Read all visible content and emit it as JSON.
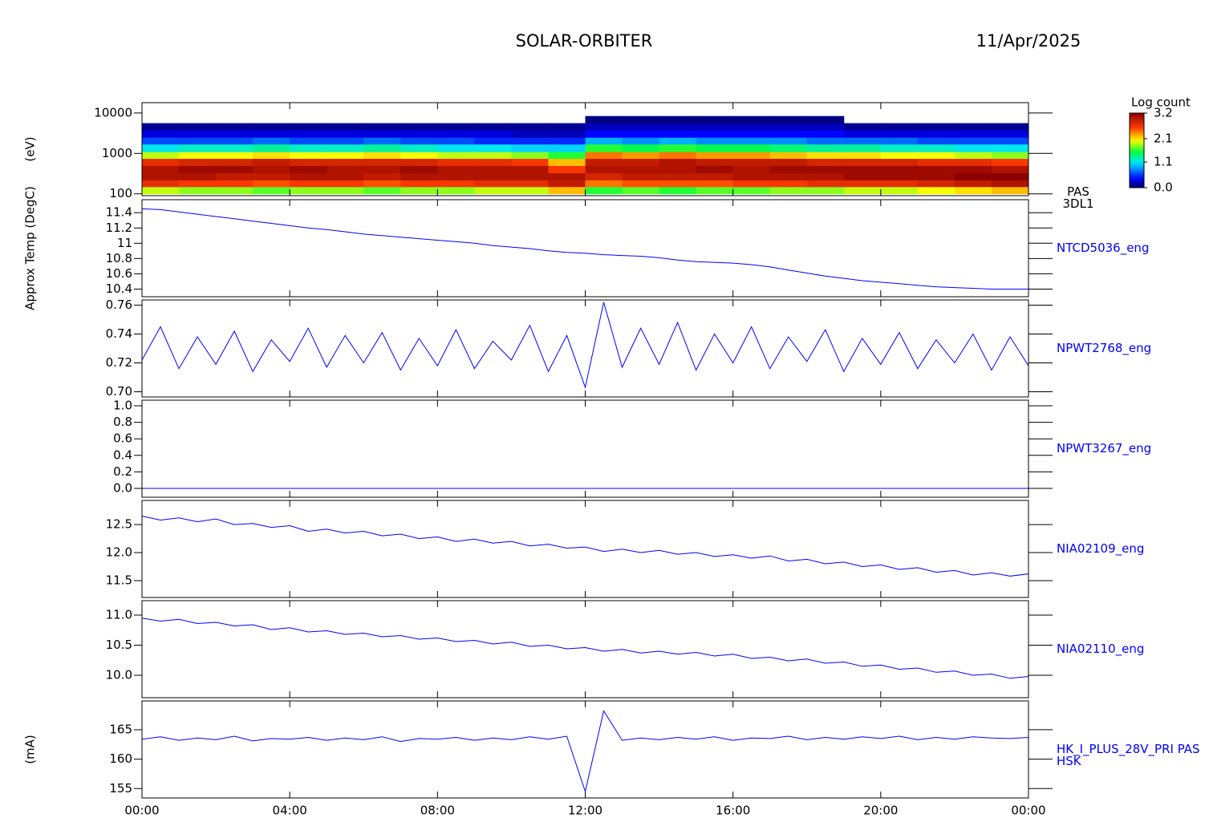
{
  "header": {
    "title": "SOLAR-ORBITER",
    "date": "11/Apr/2025"
  },
  "chart_data": [
    {
      "type": "heatmap",
      "name": "PAS 3DL1",
      "ylabel": "(eV)",
      "ylog": true,
      "colormap": "rainbow",
      "x_bins": [
        0,
        1,
        2,
        3,
        4,
        5,
        6,
        7,
        8,
        9,
        10,
        11,
        12,
        13,
        14,
        15,
        16,
        17,
        18,
        19,
        20,
        21,
        22,
        23,
        24
      ],
      "y_bins": [
        100,
        150,
        220,
        330,
        500,
        750,
        1100,
        1700,
        2500,
        3800,
        5600,
        8400,
        12500
      ],
      "z": [
        [
          1.9,
          2.7,
          3.0,
          3.0,
          2.7,
          1.9,
          1.1,
          0.6,
          0.3,
          0.1,
          null,
          null
        ],
        [
          1.8,
          2.6,
          3.0,
          3.1,
          2.8,
          2.0,
          1.2,
          0.6,
          0.3,
          0.1,
          null,
          null
        ],
        [
          1.8,
          2.6,
          2.9,
          3.1,
          2.8,
          2.0,
          1.2,
          0.6,
          0.3,
          0.1,
          null,
          null
        ],
        [
          1.7,
          2.5,
          2.9,
          3.0,
          2.9,
          2.1,
          1.3,
          0.7,
          0.3,
          0.1,
          null,
          null
        ],
        [
          1.8,
          2.6,
          3.0,
          3.1,
          2.8,
          2.0,
          1.2,
          0.6,
          0.3,
          0.1,
          null,
          null
        ],
        [
          1.8,
          2.6,
          3.0,
          3.0,
          2.8,
          2.0,
          1.2,
          0.6,
          0.3,
          0.1,
          null,
          null
        ],
        [
          1.7,
          2.5,
          2.9,
          3.0,
          2.8,
          2.1,
          1.3,
          0.7,
          0.3,
          0.1,
          null,
          null
        ],
        [
          1.8,
          2.6,
          3.0,
          3.1,
          2.8,
          2.0,
          1.2,
          0.6,
          0.3,
          0.1,
          null,
          null
        ],
        [
          1.8,
          2.6,
          3.0,
          3.0,
          2.7,
          1.9,
          1.1,
          0.6,
          0.3,
          0.1,
          null,
          null
        ],
        [
          1.9,
          2.7,
          3.0,
          3.0,
          2.7,
          1.9,
          1.1,
          0.5,
          0.3,
          0.1,
          null,
          null
        ],
        [
          1.9,
          2.7,
          3.0,
          3.0,
          2.6,
          1.8,
          1.0,
          0.5,
          0.2,
          0.1,
          null,
          null
        ],
        [
          2.2,
          2.9,
          3.0,
          2.6,
          2.2,
          1.6,
          1.0,
          0.5,
          0.2,
          0.1,
          null,
          null
        ],
        [
          1.6,
          2.4,
          2.8,
          3.0,
          2.9,
          2.4,
          1.6,
          0.9,
          0.4,
          0.2,
          0.05,
          null
        ],
        [
          1.7,
          2.5,
          2.9,
          3.0,
          2.9,
          2.3,
          1.5,
          0.8,
          0.4,
          0.2,
          0.05,
          null
        ],
        [
          1.6,
          2.5,
          2.9,
          3.0,
          3.0,
          2.4,
          1.6,
          0.9,
          0.4,
          0.2,
          0.05,
          null
        ],
        [
          1.7,
          2.5,
          2.9,
          3.1,
          2.9,
          2.3,
          1.5,
          0.8,
          0.4,
          0.2,
          0.05,
          null
        ],
        [
          1.7,
          2.6,
          3.0,
          3.0,
          2.9,
          2.3,
          1.5,
          0.8,
          0.4,
          0.2,
          0.05,
          null
        ],
        [
          1.8,
          2.6,
          3.0,
          3.1,
          2.9,
          2.2,
          1.4,
          0.8,
          0.4,
          0.2,
          0.05,
          null
        ],
        [
          1.8,
          2.7,
          3.0,
          3.1,
          2.8,
          2.1,
          1.3,
          0.7,
          0.4,
          0.2,
          0.05,
          null
        ],
        [
          1.9,
          2.7,
          3.1,
          3.1,
          2.8,
          2.1,
          1.3,
          0.7,
          0.3,
          0.1,
          null,
          null
        ],
        [
          1.9,
          2.7,
          3.1,
          3.1,
          2.8,
          2.0,
          1.2,
          0.7,
          0.3,
          0.1,
          null,
          null
        ],
        [
          2.0,
          2.8,
          3.1,
          3.1,
          2.7,
          2.0,
          1.2,
          0.6,
          0.3,
          0.1,
          null,
          null
        ],
        [
          2.1,
          2.9,
          3.2,
          3.1,
          2.7,
          1.9,
          1.1,
          0.6,
          0.3,
          0.1,
          null,
          null
        ],
        [
          2.2,
          3.0,
          3.2,
          3.0,
          2.6,
          1.8,
          1.1,
          0.6,
          0.3,
          0.1,
          null,
          null
        ]
      ],
      "xlim": [
        0,
        24
      ],
      "xticks": [
        0,
        4,
        8,
        12,
        16,
        20,
        24
      ],
      "ylim": [
        90,
        18000
      ],
      "yticks": [
        100,
        1000,
        10000
      ],
      "colorbar": {
        "label": "Log count",
        "clim": [
          0,
          3.2
        ],
        "ticks": [
          {
            "value": 0,
            "label": "0.0"
          },
          1.1,
          2.1,
          3.2
        ]
      }
    },
    {
      "type": "line",
      "ylabel": "Approx Temp (DegC)",
      "x": [
        0,
        0.5,
        1,
        1.5,
        2,
        2.5,
        3,
        3.5,
        4,
        4.5,
        5,
        5.5,
        6,
        6.5,
        7,
        7.5,
        8,
        8.5,
        9,
        9.5,
        10,
        10.5,
        11,
        11.5,
        12,
        12.5,
        13,
        13.5,
        14,
        14.5,
        15,
        15.5,
        16,
        16.5,
        17,
        17.5,
        18,
        18.5,
        19,
        19.5,
        20,
        20.5,
        21,
        21.5,
        22,
        22.5,
        23,
        23.5,
        24
      ],
      "series": [
        {
          "name": "NTCD5036_eng",
          "color": "#0000ff",
          "values": [
            11.45,
            11.44,
            11.41,
            11.38,
            11.35,
            11.32,
            11.29,
            11.26,
            11.23,
            11.2,
            11.18,
            11.15,
            11.12,
            11.1,
            11.08,
            11.06,
            11.04,
            11.02,
            11.0,
            10.97,
            10.95,
            10.93,
            10.9,
            10.88,
            10.87,
            10.85,
            10.84,
            10.83,
            10.81,
            10.78,
            10.76,
            10.75,
            10.74,
            10.72,
            10.69,
            10.65,
            10.61,
            10.57,
            10.54,
            10.51,
            10.49,
            10.47,
            10.45,
            10.43,
            10.42,
            10.41,
            10.4,
            10.4,
            10.4
          ]
        }
      ],
      "xlim": [
        0,
        24
      ],
      "xticks": [
        0,
        4,
        8,
        12,
        16,
        20,
        24
      ],
      "ylim": [
        10.3,
        11.57
      ],
      "yticks": [
        10.4,
        10.6,
        10.8,
        11.0,
        11.2,
        11.4
      ]
    },
    {
      "type": "line",
      "x": [
        0,
        0.5,
        1,
        1.5,
        2,
        2.5,
        3,
        3.5,
        4,
        4.5,
        5,
        5.5,
        6,
        6.5,
        7,
        7.5,
        8,
        8.5,
        9,
        9.5,
        10,
        10.5,
        11,
        11.5,
        12,
        12.5,
        13,
        13.5,
        14,
        14.5,
        15,
        15.5,
        16,
        16.5,
        17,
        17.5,
        18,
        18.5,
        19,
        19.5,
        20,
        20.5,
        21,
        21.5,
        22,
        22.5,
        23,
        23.5,
        24
      ],
      "series": [
        {
          "name": "NPWT2768_eng",
          "color": "#0000ff",
          "values": [
            0.722,
            0.745,
            0.716,
            0.738,
            0.719,
            0.742,
            0.714,
            0.736,
            0.721,
            0.744,
            0.717,
            0.739,
            0.72,
            0.741,
            0.715,
            0.737,
            0.718,
            0.743,
            0.716,
            0.735,
            0.722,
            0.746,
            0.714,
            0.739,
            0.703,
            0.762,
            0.717,
            0.744,
            0.719,
            0.748,
            0.715,
            0.74,
            0.72,
            0.745,
            0.716,
            0.738,
            0.721,
            0.743,
            0.714,
            0.737,
            0.719,
            0.741,
            0.716,
            0.736,
            0.72,
            0.74,
            0.715,
            0.738,
            0.718
          ]
        }
      ],
      "xlim": [
        0,
        24
      ],
      "xticks": [
        0,
        4,
        8,
        12,
        16,
        20,
        24
      ],
      "ylim": [
        0.6964,
        0.7636
      ],
      "yticks": [
        {
          "value": 0.7,
          "label": "0.70"
        },
        0.72,
        0.74,
        0.76
      ]
    },
    {
      "type": "line",
      "x": [
        0,
        0.5,
        1,
        1.5,
        2,
        2.5,
        3,
        3.5,
        4,
        4.5,
        5,
        5.5,
        6,
        6.5,
        7,
        7.5,
        8,
        8.5,
        9,
        9.5,
        10,
        10.5,
        11,
        11.5,
        12,
        12.5,
        13,
        13.5,
        14,
        14.5,
        15,
        15.5,
        16,
        16.5,
        17,
        17.5,
        18,
        18.5,
        19,
        19.5,
        20,
        20.5,
        21,
        21.5,
        22,
        22.5,
        23,
        23.5,
        24
      ],
      "series": [
        {
          "name": "NPWT3267_eng",
          "color": "#0000ff",
          "values": [
            0,
            0,
            0,
            0,
            0,
            0,
            0,
            0,
            0,
            0,
            0,
            0,
            0,
            0,
            0,
            0,
            0,
            0,
            0,
            0,
            0,
            0,
            0,
            0,
            0,
            0,
            0,
            0,
            0,
            0,
            0,
            0,
            0,
            0,
            0,
            0,
            0,
            0,
            0,
            0,
            0,
            0,
            0,
            0,
            0,
            0,
            0,
            0,
            0
          ]
        }
      ],
      "xlim": [
        0,
        24
      ],
      "xticks": [
        0,
        4,
        8,
        12,
        16,
        20,
        24
      ],
      "ylim": [
        -0.107,
        1.068
      ],
      "yticks": [
        {
          "value": 0,
          "label": "0.0"
        },
        0.2,
        0.4,
        0.6,
        0.8,
        {
          "value": 1,
          "label": "1.0"
        }
      ]
    },
    {
      "type": "line",
      "x": [
        0,
        0.5,
        1,
        1.5,
        2,
        2.5,
        3,
        3.5,
        4,
        4.5,
        5,
        5.5,
        6,
        6.5,
        7,
        7.5,
        8,
        8.5,
        9,
        9.5,
        10,
        10.5,
        11,
        11.5,
        12,
        12.5,
        13,
        13.5,
        14,
        14.5,
        15,
        15.5,
        16,
        16.5,
        17,
        17.5,
        18,
        18.5,
        19,
        19.5,
        20,
        20.5,
        21,
        21.5,
        22,
        22.5,
        23,
        23.5,
        24
      ],
      "series": [
        {
          "name": "NIA02109_eng",
          "color": "#0000ff",
          "values": [
            12.65,
            12.58,
            12.62,
            12.55,
            12.6,
            12.5,
            12.52,
            12.45,
            12.48,
            12.38,
            12.42,
            12.35,
            12.38,
            12.3,
            12.33,
            12.25,
            12.28,
            12.2,
            12.24,
            12.17,
            12.2,
            12.12,
            12.15,
            12.08,
            12.1,
            12.02,
            12.06,
            12.0,
            12.04,
            11.97,
            12.0,
            11.93,
            11.96,
            11.9,
            11.94,
            11.85,
            11.88,
            11.8,
            11.83,
            11.75,
            11.78,
            11.7,
            11.73,
            11.65,
            11.68,
            11.6,
            11.64,
            11.58,
            11.62
          ]
        }
      ],
      "xlim": [
        0,
        24
      ],
      "xticks": [
        0,
        4,
        8,
        12,
        16,
        20,
        24
      ],
      "ylim": [
        11.2,
        12.93
      ],
      "yticks": [
        11.5,
        {
          "value": 12,
          "label": "12.0"
        },
        12.5
      ]
    },
    {
      "type": "line",
      "x": [
        0,
        0.5,
        1,
        1.5,
        2,
        2.5,
        3,
        3.5,
        4,
        4.5,
        5,
        5.5,
        6,
        6.5,
        7,
        7.5,
        8,
        8.5,
        9,
        9.5,
        10,
        10.5,
        11,
        11.5,
        12,
        12.5,
        13,
        13.5,
        14,
        14.5,
        15,
        15.5,
        16,
        16.5,
        17,
        17.5,
        18,
        18.5,
        19,
        19.5,
        20,
        20.5,
        21,
        21.5,
        22,
        22.5,
        23,
        23.5,
        24
      ],
      "series": [
        {
          "name": "NIA02110_eng",
          "color": "#0000ff",
          "values": [
            10.95,
            10.9,
            10.93,
            10.86,
            10.88,
            10.82,
            10.84,
            10.76,
            10.79,
            10.72,
            10.74,
            10.68,
            10.7,
            10.64,
            10.66,
            10.6,
            10.62,
            10.56,
            10.58,
            10.52,
            10.55,
            10.48,
            10.5,
            10.44,
            10.46,
            10.4,
            10.43,
            10.37,
            10.4,
            10.35,
            10.38,
            10.32,
            10.35,
            10.28,
            10.3,
            10.24,
            10.27,
            10.2,
            10.22,
            10.15,
            10.17,
            10.1,
            10.12,
            10.05,
            10.07,
            10.0,
            10.02,
            9.95,
            9.98
          ]
        }
      ],
      "xlim": [
        0,
        24
      ],
      "xticks": [
        0,
        4,
        8,
        12,
        16,
        20,
        24
      ],
      "ylim": [
        9.627,
        11.24
      ],
      "yticks": [
        {
          "value": 10,
          "label": "10.0"
        },
        10.5,
        {
          "value": 11,
          "label": "11.0"
        }
      ]
    },
    {
      "type": "line",
      "ylabel": "(mA)",
      "x": [
        0,
        0.5,
        1,
        1.5,
        2,
        2.5,
        3,
        3.5,
        4,
        4.5,
        5,
        5.5,
        6,
        6.5,
        7,
        7.5,
        8,
        8.5,
        9,
        9.5,
        10,
        10.5,
        11,
        11.5,
        12,
        12.5,
        13,
        13.5,
        14,
        14.5,
        15,
        15.5,
        16,
        16.5,
        17,
        17.5,
        18,
        18.5,
        19,
        19.5,
        20,
        20.5,
        21,
        21.5,
        22,
        22.5,
        23,
        23.5,
        24
      ],
      "series": [
        {
          "name": "HK_I_PLUS_28V_PRI PAS HSK",
          "color": "#0000ff",
          "values": [
            163.4,
            163.8,
            163.2,
            163.6,
            163.3,
            163.9,
            163.1,
            163.5,
            163.4,
            163.7,
            163.2,
            163.6,
            163.3,
            163.8,
            163.0,
            163.5,
            163.4,
            163.7,
            163.2,
            163.6,
            163.3,
            163.8,
            163.4,
            163.9,
            154.5,
            168.2,
            163.2,
            163.6,
            163.3,
            163.7,
            163.4,
            163.8,
            163.2,
            163.6,
            163.5,
            163.9,
            163.3,
            163.7,
            163.4,
            163.8,
            163.5,
            163.9,
            163.3,
            163.7,
            163.4,
            163.8,
            163.6,
            163.5,
            163.7
          ]
        }
      ],
      "xlim": [
        0,
        24
      ],
      "xticks": [
        {
          "value": 0,
          "label": "00:00"
        },
        {
          "value": 4,
          "label": "04:00"
        },
        {
          "value": 8,
          "label": "08:00"
        },
        {
          "value": 12,
          "label": "12:00"
        },
        {
          "value": 16,
          "label": "16:00"
        },
        {
          "value": 20,
          "label": "20:00"
        },
        {
          "value": 24,
          "label": "00:00"
        }
      ],
      "ylim": [
        153.4,
        169.9
      ],
      "yticks": [
        155,
        160,
        165
      ]
    }
  ]
}
